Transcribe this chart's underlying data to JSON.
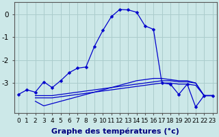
{
  "background_color": "#cce8e8",
  "grid_color": "#aacccc",
  "line_color": "#0000cc",
  "xlabel": "Graphe des températures (°c)",
  "xlabel_fontsize": 8,
  "tick_fontsize": 6.5,
  "ytick_fontsize": 7.5,
  "xlim": [
    -0.5,
    23.5
  ],
  "ylim": [
    -4.3,
    0.55
  ],
  "yticks": [
    0,
    -1,
    -2,
    -3
  ],
  "xticks": [
    0,
    1,
    2,
    3,
    4,
    5,
    6,
    7,
    8,
    9,
    10,
    11,
    12,
    13,
    14,
    15,
    16,
    17,
    18,
    19,
    20,
    21,
    22,
    23
  ],
  "line1_x": [
    0,
    1,
    2,
    3,
    4,
    5,
    6,
    7,
    8,
    9,
    10,
    11,
    12,
    13,
    14,
    15,
    16,
    17,
    18,
    19,
    20,
    21,
    22,
    23
  ],
  "line1_y": [
    -3.5,
    -3.3,
    -3.4,
    -2.95,
    -3.2,
    -2.9,
    -2.55,
    -2.35,
    -2.3,
    -1.4,
    -0.7,
    -0.1,
    0.22,
    0.2,
    0.1,
    -0.5,
    -0.65,
    -3.0,
    -3.05,
    -3.5,
    -3.05,
    -4.05,
    -3.55,
    -3.55
  ],
  "line2_x": [
    2,
    3,
    4,
    5,
    6,
    7,
    8,
    9,
    10,
    11,
    12,
    13,
    14,
    15,
    16,
    17,
    18,
    19,
    20,
    21,
    22,
    23
  ],
  "line2_y": [
    -3.55,
    -3.55,
    -3.55,
    -3.5,
    -3.45,
    -3.4,
    -3.35,
    -3.3,
    -3.25,
    -3.2,
    -3.15,
    -3.1,
    -3.05,
    -3.0,
    -2.95,
    -2.9,
    -2.9,
    -2.95,
    -2.95,
    -3.0,
    -3.55,
    -3.55
  ],
  "line3_x": [
    2,
    3,
    4,
    5,
    6,
    7,
    8,
    9,
    10,
    11,
    12,
    13,
    14,
    15,
    16,
    17,
    18,
    19,
    20,
    21,
    22,
    23
  ],
  "line3_y": [
    -3.65,
    -3.65,
    -3.65,
    -3.6,
    -3.55,
    -3.5,
    -3.45,
    -3.4,
    -3.35,
    -3.3,
    -3.25,
    -3.2,
    -3.15,
    -3.1,
    -3.05,
    -3.0,
    -3.0,
    -3.05,
    -3.05,
    -3.1,
    -3.55,
    -3.55
  ],
  "line4_x": [
    2,
    3,
    4,
    5,
    6,
    7,
    8,
    9,
    10,
    11,
    12,
    13,
    14,
    15,
    16,
    17,
    18,
    19,
    20,
    21,
    22,
    23
  ],
  "line4_y": [
    -3.8,
    -4.0,
    -3.9,
    -3.8,
    -3.7,
    -3.6,
    -3.5,
    -3.4,
    -3.3,
    -3.2,
    -3.1,
    -3.0,
    -2.9,
    -2.85,
    -2.8,
    -2.8,
    -2.85,
    -2.9,
    -2.9,
    -3.0,
    -3.55,
    -3.55
  ]
}
